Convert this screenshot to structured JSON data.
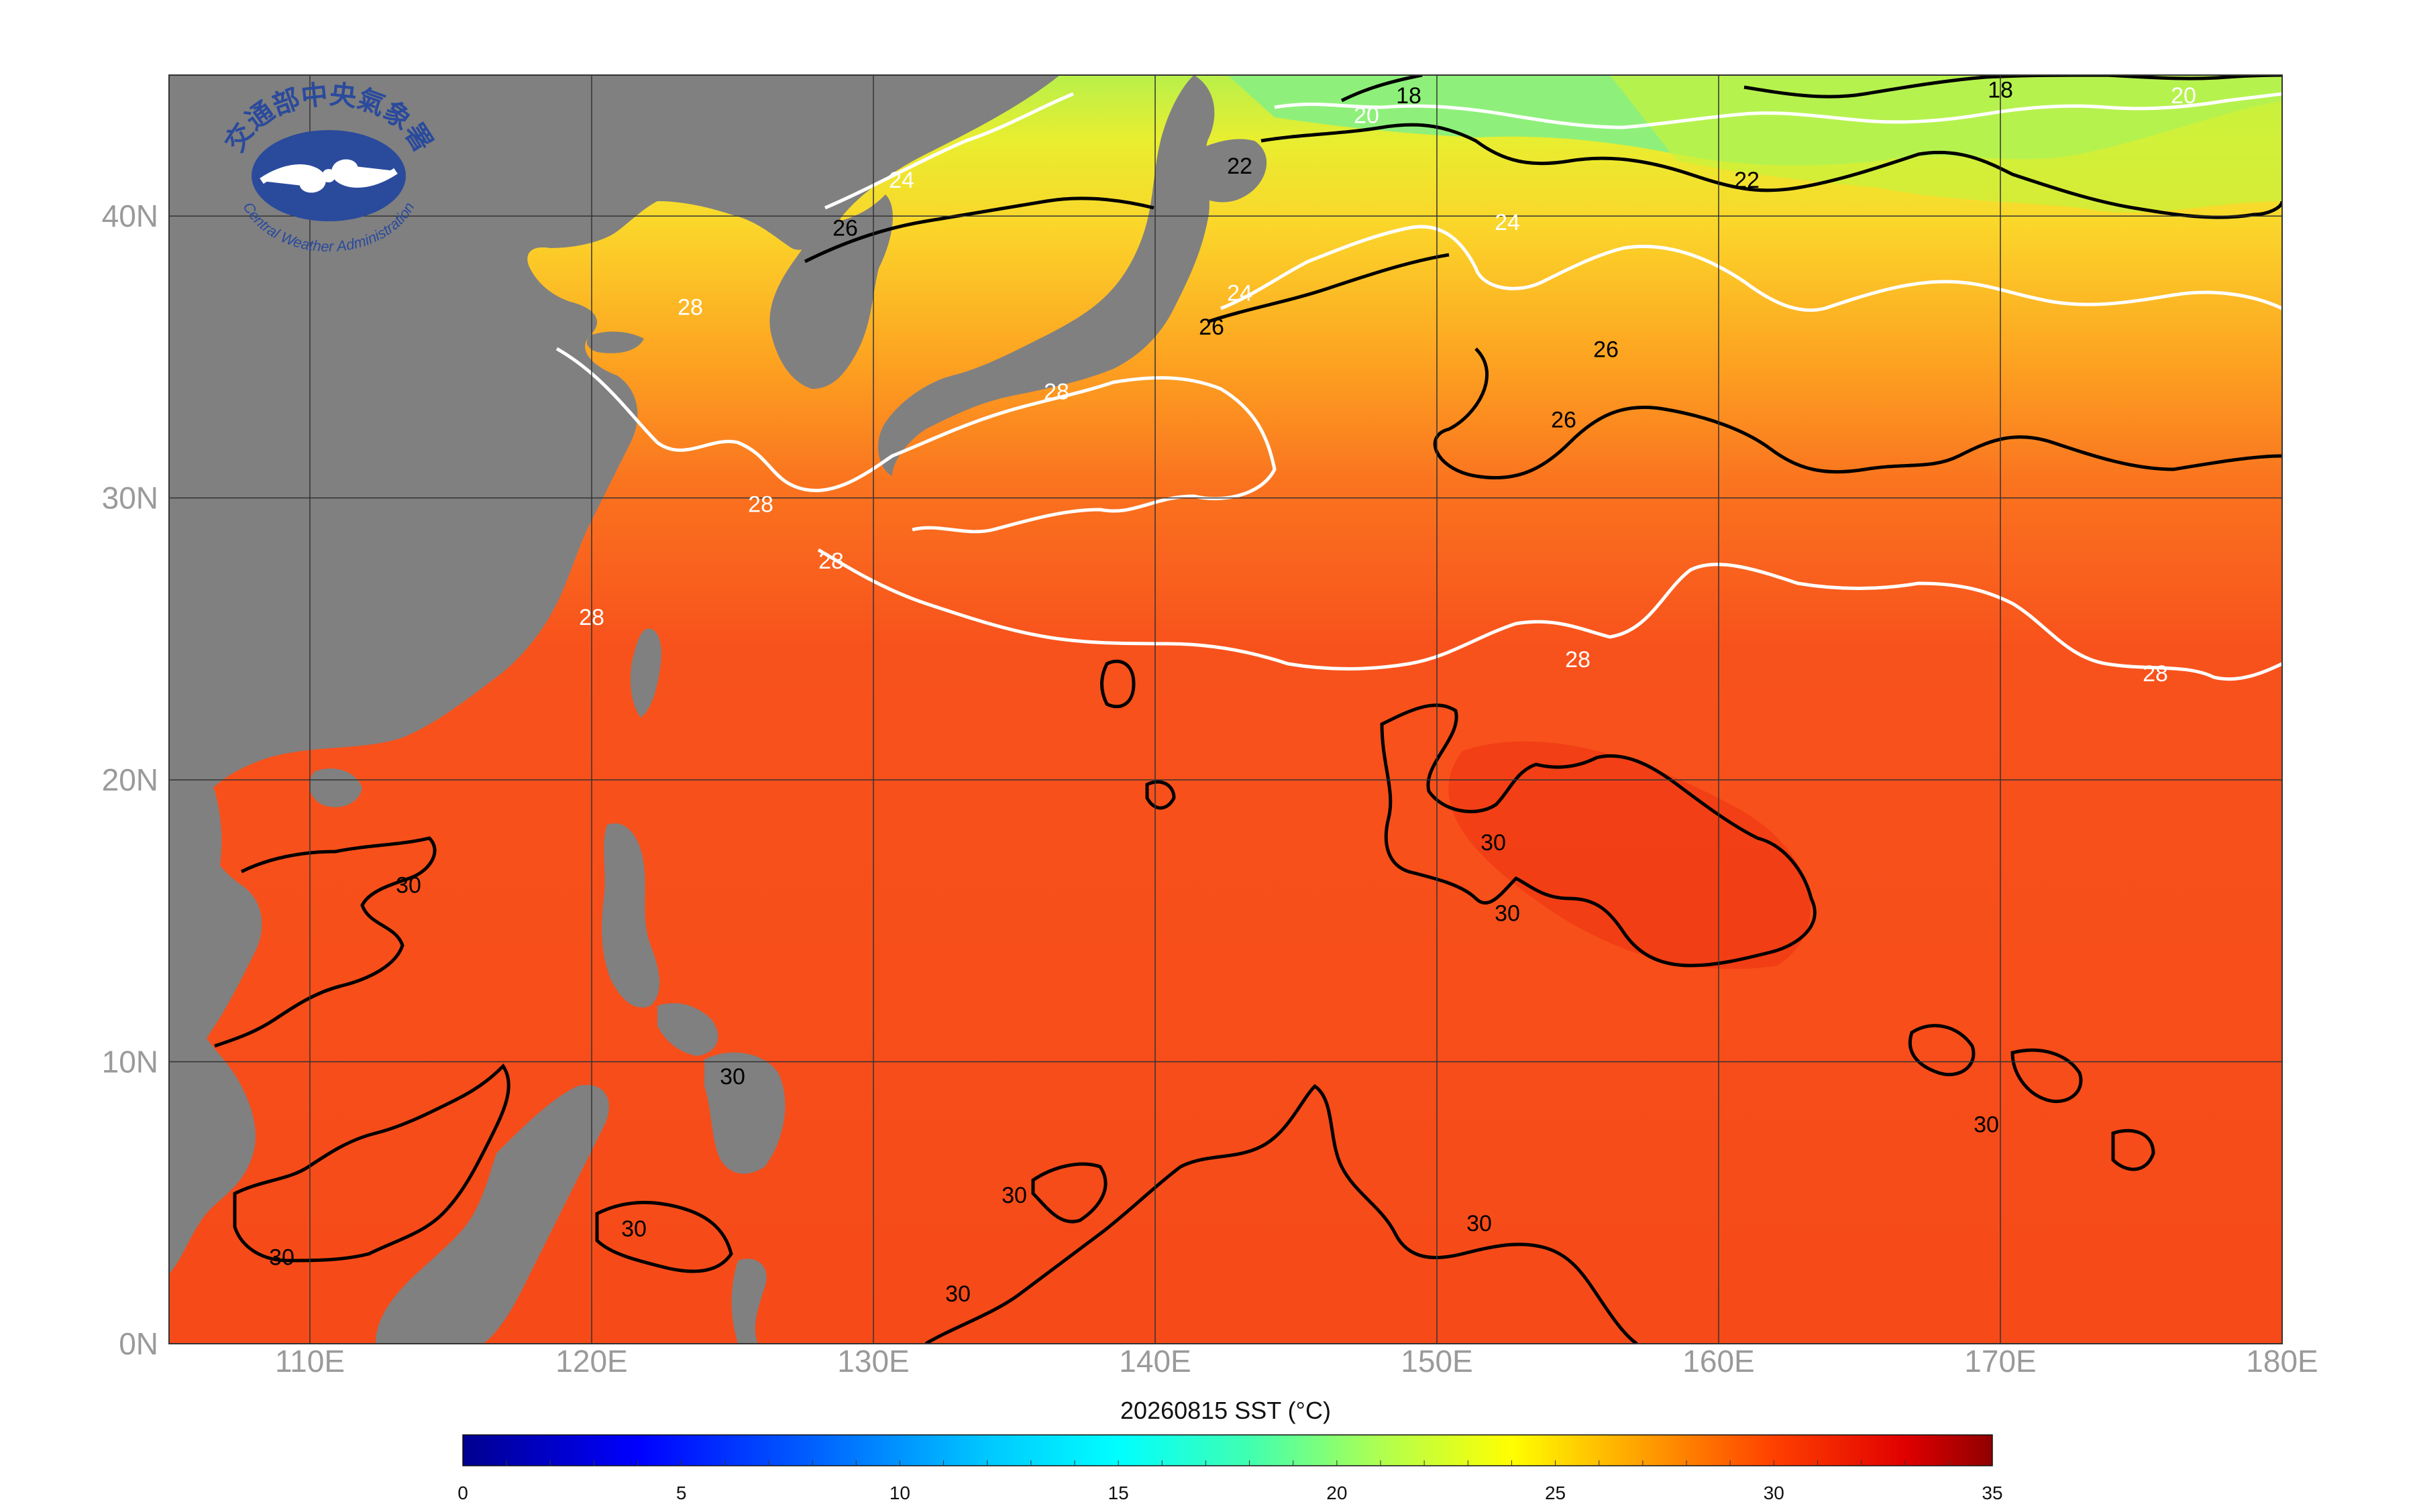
{
  "logo": {
    "name_zh": "交通部中央氣象署",
    "name_en": "Central Weather Administration"
  },
  "map": {
    "title": "20260815 SST (°C)",
    "lat_labels": [
      "0N",
      "10N",
      "20N",
      "30N",
      "40N"
    ],
    "lon_labels": [
      "110E",
      "120E",
      "130E",
      "140E",
      "150E",
      "160E",
      "170E",
      "180E"
    ],
    "lon_range": [
      105,
      180
    ],
    "lat_range": [
      0,
      45
    ],
    "colors": {
      "land": "#808080",
      "warm_sea": "#f8521c",
      "hot_sea": "#f23c14",
      "mid_sea": "#fb9a1a",
      "cool_sea": "#f7d22a",
      "cold_sea": "#9ff04a",
      "contour_white": "#ffffff",
      "contour_black": "#000000"
    },
    "contour_labels": [
      {
        "text": "18",
        "lon": 149.0,
        "lat": 44.0
      },
      {
        "text": "18",
        "lon": 170.0,
        "lat": 44.2
      },
      {
        "text": "20",
        "lon": 147.5,
        "lat": 43.3
      },
      {
        "text": "20",
        "lon": 176.5,
        "lat": 44.0
      },
      {
        "text": "22",
        "lon": 143.0,
        "lat": 41.5
      },
      {
        "text": "22",
        "lon": 161.0,
        "lat": 41.0
      },
      {
        "text": "24",
        "lon": 152.5,
        "lat": 39.5
      },
      {
        "text": "24",
        "lon": 143.0,
        "lat": 37.0
      },
      {
        "text": "24",
        "lon": 131.0,
        "lat": 41.0
      },
      {
        "text": "26",
        "lon": 129.0,
        "lat": 39.3
      },
      {
        "text": "26",
        "lon": 142.0,
        "lat": 35.8
      },
      {
        "text": "26",
        "lon": 156.0,
        "lat": 35.0
      },
      {
        "text": "26",
        "lon": 154.5,
        "lat": 32.5
      },
      {
        "text": "28",
        "lon": 136.5,
        "lat": 33.5
      },
      {
        "text": "28",
        "lon": 123.5,
        "lat": 36.5
      },
      {
        "text": "28",
        "lon": 126.0,
        "lat": 29.5
      },
      {
        "text": "28",
        "lon": 128.5,
        "lat": 27.5
      },
      {
        "text": "28",
        "lon": 120.0,
        "lat": 25.5
      },
      {
        "text": "28",
        "lon": 155.0,
        "lat": 24.0
      },
      {
        "text": "28",
        "lon": 175.5,
        "lat": 23.5
      },
      {
        "text": "30",
        "lon": 152.0,
        "lat": 17.5
      },
      {
        "text": "30",
        "lon": 152.5,
        "lat": 15.0
      },
      {
        "text": "30",
        "lon": 113.5,
        "lat": 16.0
      },
      {
        "text": "30",
        "lon": 121.5,
        "lat": 3.8
      },
      {
        "text": "30",
        "lon": 109.0,
        "lat": 2.8
      },
      {
        "text": "30",
        "lon": 125.0,
        "lat": 9.2
      },
      {
        "text": "30",
        "lon": 135.0,
        "lat": 5.0
      },
      {
        "text": "30",
        "lon": 133.0,
        "lat": 1.5
      },
      {
        "text": "30",
        "lon": 151.5,
        "lat": 4.0
      },
      {
        "text": "30",
        "lon": 169.5,
        "lat": 7.5
      }
    ]
  },
  "colorbar": {
    "ticks": [
      "0",
      "5",
      "10",
      "15",
      "20",
      "25",
      "30",
      "35"
    ],
    "min": 0,
    "max": 35,
    "stops": [
      {
        "value": 0,
        "color": "#000090"
      },
      {
        "value": 4,
        "color": "#0000ff"
      },
      {
        "value": 8,
        "color": "#0060ff"
      },
      {
        "value": 12,
        "color": "#00c8ff"
      },
      {
        "value": 15,
        "color": "#00ffff"
      },
      {
        "value": 18,
        "color": "#40ffb0"
      },
      {
        "value": 21,
        "color": "#b0ff50"
      },
      {
        "value": 24,
        "color": "#ffff00"
      },
      {
        "value": 27,
        "color": "#ffa000"
      },
      {
        "value": 30,
        "color": "#ff4000"
      },
      {
        "value": 33,
        "color": "#e00000"
      },
      {
        "value": 35,
        "color": "#900000"
      }
    ]
  }
}
